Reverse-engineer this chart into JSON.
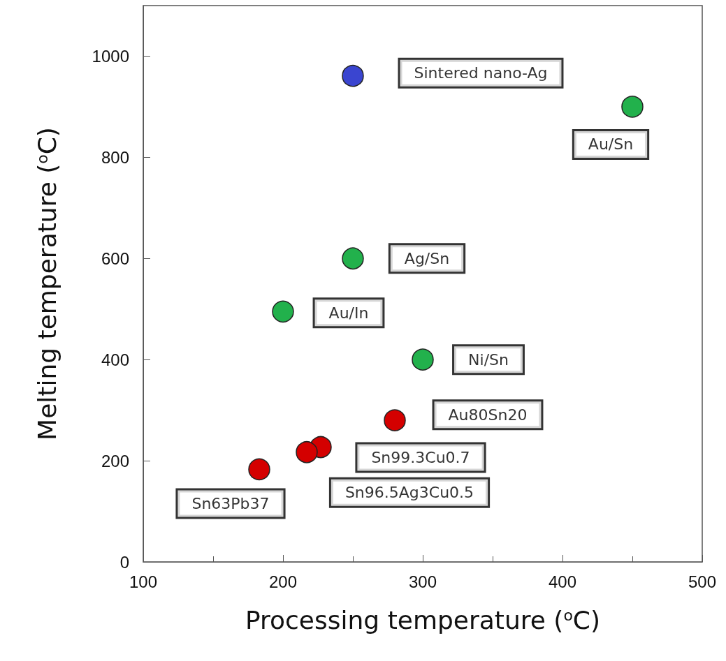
{
  "chart_data": {
    "type": "scatter",
    "xlabel": "Processing temperature ($^{o}$C)",
    "ylabel": "Melting temperature ($^{o}$C)",
    "xlim": [
      100,
      500
    ],
    "xticks": [
      100,
      200,
      300,
      400,
      500
    ],
    "ylim": [
      0,
      1100
    ],
    "yticks": [
      0,
      200,
      400,
      600,
      800,
      1000
    ],
    "grid": false,
    "marker": "circle",
    "series": [
      {
        "color": "#3a45d0",
        "x": [
          250
        ],
        "values": [
          961
        ]
      },
      {
        "color": "#22b14c",
        "x": [
          450,
          250,
          200,
          300
        ],
        "values": [
          900,
          600,
          495,
          400
        ]
      },
      {
        "color": "#d40000",
        "x": [
          280,
          227,
          217,
          183
        ],
        "values": [
          280,
          227,
          217,
          183
        ]
      }
    ],
    "annotations": [
      "Sintered nano-Ag",
      "Au/Sn",
      "Ag/Sn",
      "Au/In",
      "Ni/Sn",
      "Au80Sn20",
      "Sn99.3Cu0.7",
      "Sn96.5Ag3Cu0.5",
      "Sn63Pb37"
    ]
  }
}
